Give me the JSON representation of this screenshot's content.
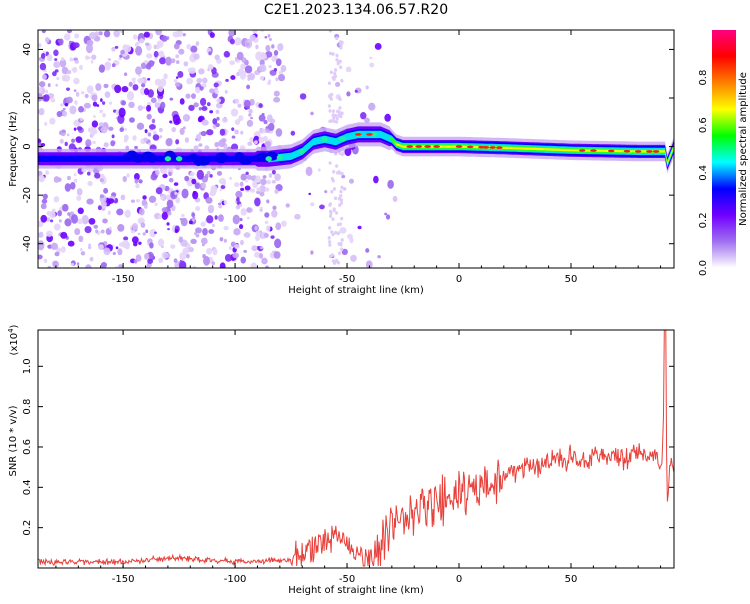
{
  "title": "C2E1.2023.134.06.57.R20",
  "chart_data": [
    {
      "type": "heatmap",
      "xlabel": "Height of straight line (km)",
      "ylabel": "Frequency (Hz)",
      "xlim": [
        -188,
        96
      ],
      "ylim": [
        -50,
        48
      ],
      "xticks": [
        "-150",
        "-100",
        "-50",
        "0",
        "50"
      ],
      "yticks": [
        "-40",
        "-20",
        "0",
        "20",
        "40"
      ],
      "grid": false,
      "ridge": {
        "x": [
          -188,
          -150,
          -120,
          -100,
          -85,
          -75,
          -70,
          -65,
          -60,
          -55,
          -50,
          -45,
          -40,
          -35,
          -30,
          -28,
          -25,
          -20,
          -10,
          0,
          20,
          50,
          80,
          92,
          93,
          96
        ],
        "y": [
          -5,
          -5,
          -5,
          -5,
          -5,
          -4,
          -2,
          2,
          3,
          2,
          4,
          5,
          5,
          5,
          3,
          1,
          0,
          0,
          0,
          0,
          -0.5,
          -1.5,
          -2,
          -2,
          -7,
          0
        ]
      },
      "colorbar": {
        "label": "Normalized spectral amplitude",
        "range": [
          0,
          1
        ],
        "ticks": [
          "0.0",
          "0.2",
          "0.4",
          "0.6",
          "0.8"
        ],
        "colors": [
          "#ffffff",
          "#a070f0",
          "#7000ff",
          "#0000ff",
          "#00ffff",
          "#00ff00",
          "#ffff00",
          "#ff8000",
          "#ff0000",
          "#ff0080"
        ]
      }
    },
    {
      "type": "line",
      "xlabel": "Height of straight line (km)",
      "ylabel": "SNR (10 * v/v)",
      "multiplier": "(x10",
      "multiplier_exp": "4",
      "xlim": [
        -188,
        96
      ],
      "ylim": [
        0,
        1.18
      ],
      "xticks": [
        "-150",
        "-100",
        "-50",
        "0",
        "50"
      ],
      "yticks": [
        "0.2",
        "0.4",
        "0.6",
        "0.8",
        "1.0"
      ],
      "color": "#e8403a",
      "grid": false,
      "series": [
        {
          "x": [
            -188,
            -150,
            -125,
            -100,
            -75,
            -65,
            -60,
            -57,
            -55,
            -50,
            -46,
            -42,
            -40,
            -35,
            -30,
            -25,
            -20,
            -15,
            -10,
            -5,
            0,
            5,
            10,
            15,
            20,
            30,
            40,
            50,
            60,
            70,
            80,
            88,
            90,
            91,
            92,
            93,
            94,
            96
          ],
          "y": [
            0.03,
            0.03,
            0.05,
            0.03,
            0.04,
            0.09,
            0.14,
            0.16,
            0.18,
            0.12,
            0.07,
            0.04,
            0.04,
            0.12,
            0.2,
            0.24,
            0.27,
            0.3,
            0.32,
            0.33,
            0.35,
            0.38,
            0.4,
            0.42,
            0.46,
            0.5,
            0.53,
            0.55,
            0.55,
            0.55,
            0.55,
            0.57,
            0.5,
            0.6,
            1.18,
            0.28,
            0.5,
            0.5
          ]
        }
      ]
    }
  ]
}
